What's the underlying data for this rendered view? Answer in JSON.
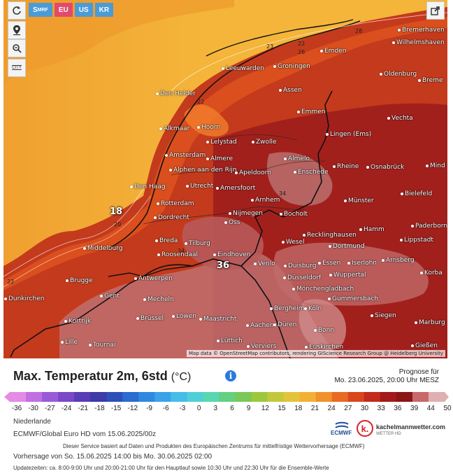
{
  "tabs": [
    {
      "label": "S",
      "sub": "MRF",
      "color": "#4a9bd6"
    },
    {
      "label": "EU",
      "color": "#e24a6c"
    },
    {
      "label": "US",
      "color": "#4a9bd6"
    },
    {
      "label": "KR",
      "color": "#4a9bd6"
    }
  ],
  "tools": {
    "refresh_icon": "refresh-icon",
    "location_icon": "location-pin-icon",
    "zoom_icon": "zoom-icon",
    "city_label": "CITY",
    "share_icon": "share-icon"
  },
  "map": {
    "attribution": "Map data © OpenStreetMap contributors, rendering GIScience Research Group @ Heidelberg University",
    "cities": [
      "Bremerhaven",
      "Wilhelmshaven",
      "Emden",
      "Groningen",
      "Leeuwarden",
      "Oldenburg",
      "Breme",
      "Den Helder",
      "Assen",
      "Emmen",
      "Vechta",
      "Alkmaar",
      "Hoorn",
      "Lelystad",
      "Zwolle",
      "Lingen (Ems)",
      "Amsterdam",
      "Almere",
      "Almelo",
      "Rheine",
      "Osnabrück",
      "Mind",
      "Alphen aan den Rijn",
      "Utrecht",
      "Apeldoorn",
      "Enschede",
      "Den Haag",
      "Amersfoort",
      "Bielefeld",
      "Rotterdam",
      "Arnhem",
      "Münster",
      "Dordrecht",
      "Nijmegen",
      "Bocholt",
      "Oss",
      "Paderborn",
      "Recklinghausen",
      "Hamm",
      "Breda",
      "Tilburg",
      "Wesel",
      "Dortmund",
      "Lippstadt",
      "Middelburg",
      "Roosendaal",
      "Eindhoven",
      "Venlo",
      "Duisburg",
      "Essen",
      "Iserlohn",
      "Arnsberg",
      "Brugge",
      "Antwerpen",
      "Düsseldorf",
      "Wuppertal",
      "Korba",
      "Mönchengladbach",
      "Gummersbach",
      "Dunkirchen",
      "Gent",
      "Mecheln",
      "Bergheim",
      "Köln",
      "Siegen",
      "Kortrijk",
      "Brüssel",
      "Löwen",
      "Maastricht",
      "Aachen",
      "Düren",
      "Bonn",
      "Marburg",
      "Lille",
      "Tournai",
      "Lüttich",
      "Verviers",
      "Euskirchen",
      "Gießen"
    ],
    "temp_marks": [
      {
        "value": "18"
      },
      {
        "value": "36"
      }
    ],
    "isoline_labels": [
      "28",
      "23",
      "22",
      "20",
      "22",
      "22",
      "26",
      "34",
      "34"
    ]
  },
  "legend": {
    "title": "Max. Temperatur 2m, 6std",
    "unit": "(°C)",
    "forecast_label": "Prognose für",
    "forecast_time": "Mo. 23.06.2025, 20:00 Uhr MESZ",
    "ticks": [
      "-36",
      "-30",
      "-27",
      "-24",
      "-21",
      "-18",
      "-15",
      "-12",
      "-9",
      "-6",
      "-3",
      "0",
      "3",
      "6",
      "9",
      "12",
      "15",
      "18",
      "21",
      "24",
      "27",
      "30",
      "33",
      "36",
      "39",
      "44",
      "50"
    ],
    "colors": [
      "#e58ae5",
      "#c070e0",
      "#9a5ad8",
      "#7a47c8",
      "#5a3cb8",
      "#3e3aa8",
      "#2f4fb8",
      "#2b6ad0",
      "#2f88e0",
      "#3aa3e8",
      "#46bde8",
      "#4fcfd8",
      "#5ad6b0",
      "#64d080",
      "#7ac85a",
      "#9cc83c",
      "#c2c83a",
      "#e2c43a",
      "#f2b034",
      "#f0922a",
      "#e86a22",
      "#d9451e",
      "#c12a1c",
      "#a31a1a",
      "#8a1616",
      "#c66a6a",
      "#e0b0b0"
    ]
  },
  "footer": {
    "region": "Niederlande",
    "model": "ECMWF/Global Euro HD vom 15.06.2025/00z",
    "service": "Dieser Service basiert auf Daten und Produkten des Europäischen Zentrums für mittelfristige Wettervorhersage (ECMWF)",
    "range": "Vorhersage von So. 15.06.2025 14:00 bis Mo. 30.06.2025 02:00",
    "updates": "Updatezeiten: ca. 8:00-9:00 Uhr und 20:00-21:00 Uhr für den Hauptlauf sowie 10:30 Uhr und 22:30 Uhr für die Ensemble-Werte",
    "ecmwf_label": "ECMWF",
    "brand_name": "kachelmannwetter.com",
    "brand_sub": "WETTER HD",
    "brand_letter": "k."
  }
}
